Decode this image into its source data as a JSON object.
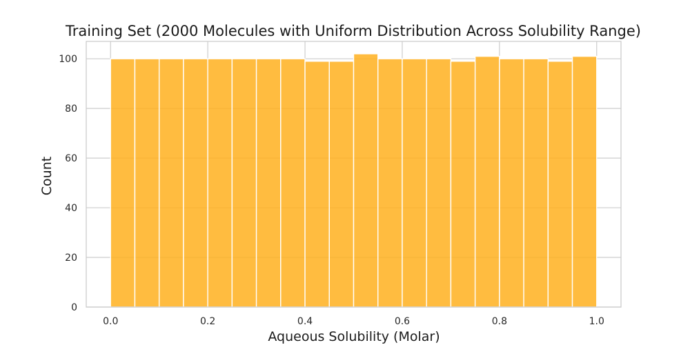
{
  "chart_data": {
    "type": "bar",
    "title": "Training Set (2000 Molecules with Uniform Distribution Across Solubility Range)",
    "xlabel": "Aqueous Solubility (Molar)",
    "ylabel": "Count",
    "bin_edges": [
      0.0,
      0.05,
      0.1,
      0.15,
      0.2,
      0.25,
      0.3,
      0.35,
      0.4,
      0.45,
      0.5,
      0.55,
      0.6,
      0.65,
      0.7,
      0.75,
      0.8,
      0.85,
      0.9,
      0.95,
      1.0
    ],
    "values": [
      100,
      100,
      100,
      100,
      100,
      100,
      100,
      100,
      99,
      99,
      102,
      100,
      100,
      100,
      99,
      101,
      100,
      100,
      99,
      101
    ],
    "xlim": [
      -0.05,
      1.05
    ],
    "ylim": [
      0,
      107
    ],
    "xticks": [
      0.0,
      0.2,
      0.4,
      0.6,
      0.8,
      1.0
    ],
    "xtick_labels": [
      "0.0",
      "0.2",
      "0.4",
      "0.6",
      "0.8",
      "1.0"
    ],
    "yticks": [
      0,
      20,
      40,
      60,
      80,
      100
    ],
    "ytick_labels": [
      "0",
      "20",
      "40",
      "60",
      "80",
      "100"
    ],
    "grid": true,
    "bar_color": "#ffb01f",
    "bar_opacity": 0.85
  }
}
